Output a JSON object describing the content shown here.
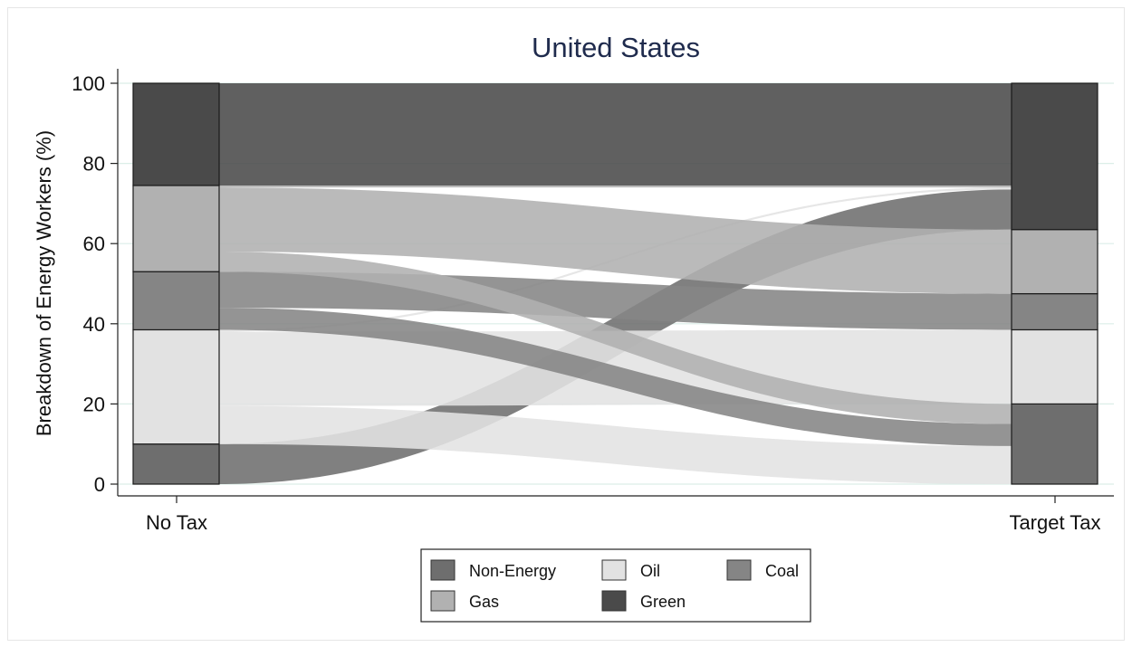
{
  "chart_data": {
    "type": "sankey",
    "title": "United States",
    "ylabel": "Breakdown of Energy Workers (%)",
    "xlabel": "",
    "ylim": [
      0,
      100
    ],
    "yticks": [
      0,
      20,
      40,
      60,
      80,
      100
    ],
    "categories": [
      "No Tax",
      "Target Tax"
    ],
    "nodes": {
      "No Tax": [
        {
          "name": "Non-Energy",
          "from": 0,
          "to": 10
        },
        {
          "name": "Oil",
          "from": 10,
          "to": 38.5
        },
        {
          "name": "Coal",
          "from": 38.5,
          "to": 53
        },
        {
          "name": "Gas",
          "from": 53,
          "to": 74.5
        },
        {
          "name": "Green",
          "from": 74.5,
          "to": 100
        }
      ],
      "Target Tax": [
        {
          "name": "Non-Energy",
          "from": 0,
          "to": 20
        },
        {
          "name": "Oil",
          "from": 20,
          "to": 38.5
        },
        {
          "name": "Coal",
          "from": 38.5,
          "to": 47.5
        },
        {
          "name": "Gas",
          "from": 47.5,
          "to": 63.5
        },
        {
          "name": "Green",
          "from": 63.5,
          "to": 100
        }
      ]
    },
    "flows": [
      {
        "from": "Non-Energy",
        "to": "Green",
        "value": 10
      },
      {
        "from": "Oil",
        "to": "Non-Energy",
        "value": 9.5
      },
      {
        "from": "Oil",
        "to": "Oil",
        "value": 18.5
      },
      {
        "from": "Oil",
        "to": "Green",
        "value": 0.5
      },
      {
        "from": "Coal",
        "to": "Non-Energy",
        "value": 5.5
      },
      {
        "from": "Coal",
        "to": "Coal",
        "value": 9
      },
      {
        "from": "Gas",
        "to": "Non-Energy",
        "value": 5
      },
      {
        "from": "Gas",
        "to": "Gas",
        "value": 16
      },
      {
        "from": "Gas",
        "to": "Green",
        "value": 0.5
      },
      {
        "from": "Green",
        "to": "Green",
        "value": 25.5
      }
    ],
    "legend": {
      "position": "bottom",
      "items": [
        {
          "name": "Non-Energy",
          "color": "#6e6e6e"
        },
        {
          "name": "Oil",
          "color": "#e2e2e2"
        },
        {
          "name": "Coal",
          "color": "#858585"
        },
        {
          "name": "Gas",
          "color": "#b1b1b1"
        },
        {
          "name": "Green",
          "color": "#4a4a4a"
        }
      ]
    },
    "grid": true
  }
}
